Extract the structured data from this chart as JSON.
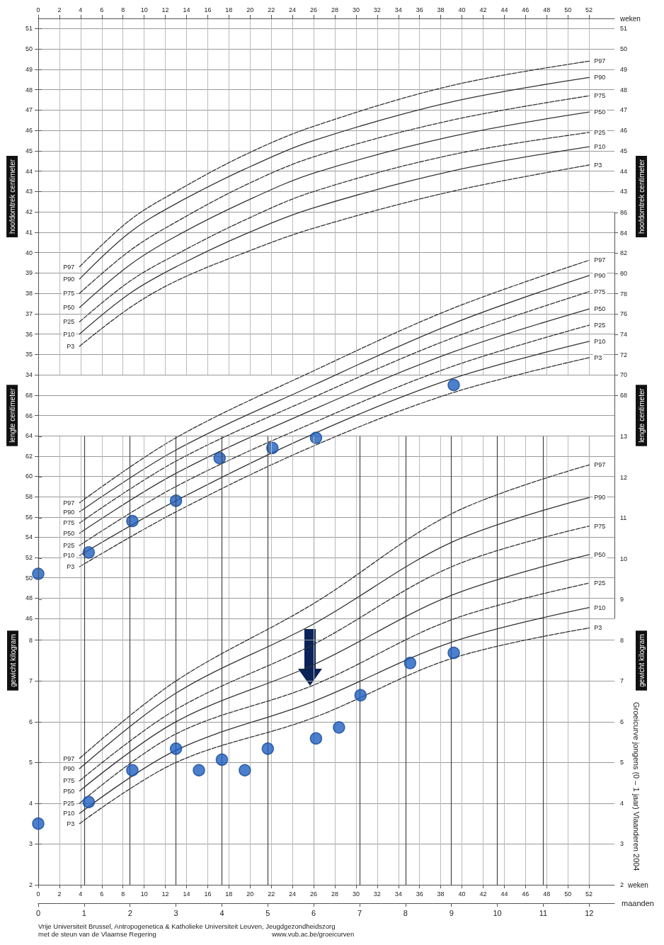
{
  "chart_data": [
    {
      "type": "line",
      "ylabel": "hoofdomtrek centimeter",
      "y2label": "hoofdomtrek centimeter",
      "x2label": "weken",
      "xlim": [
        0,
        12.55
      ],
      "x2lim": [
        0,
        54.4
      ],
      "x2ticks": [
        0,
        2,
        4,
        6,
        8,
        10,
        12,
        14,
        16,
        18,
        20,
        22,
        24,
        26,
        28,
        30,
        32,
        34,
        36,
        38,
        40,
        42,
        44,
        46,
        48,
        50,
        52
      ],
      "ylim": [
        34,
        51.5
      ],
      "yticks": [
        34,
        35,
        36,
        37,
        38,
        39,
        40,
        41,
        42,
        43,
        44,
        45,
        46,
        47,
        48,
        49,
        50,
        51
      ],
      "y2lim": [
        34,
        51.5
      ],
      "y2ticks": [
        43,
        44,
        45,
        46,
        47,
        48,
        49,
        50,
        51
      ],
      "tick_labels": "y",
      "grid": true,
      "legend": false,
      "x": [
        0.9,
        2,
        3,
        4.5,
        6,
        9,
        12
      ],
      "series": [
        {
          "name": "P97",
          "color": "#333333",
          "line_style": "dashed",
          "values": [
            39.3,
            41.6,
            43.0,
            44.8,
            46.2,
            48.2,
            49.4
          ]
        },
        {
          "name": "P90",
          "color": "#333333",
          "line_style": "solid",
          "values": [
            38.7,
            41.0,
            42.4,
            44.1,
            45.5,
            47.4,
            48.6
          ]
        },
        {
          "name": "P75",
          "color": "#333333",
          "line_style": "dashed",
          "values": [
            38.0,
            40.1,
            41.5,
            43.3,
            44.7,
            46.5,
            47.7
          ]
        },
        {
          "name": "P50",
          "color": "#333333",
          "line_style": "solid",
          "values": [
            37.3,
            39.4,
            40.8,
            42.5,
            43.9,
            45.7,
            46.9
          ]
        },
        {
          "name": "P25",
          "color": "#333333",
          "line_style": "dashed",
          "values": [
            36.6,
            38.6,
            39.9,
            41.6,
            43.0,
            44.8,
            45.9
          ]
        },
        {
          "name": "P10",
          "color": "#333333",
          "line_style": "solid",
          "values": [
            36.0,
            38.0,
            39.3,
            40.9,
            42.2,
            44.0,
            45.2
          ]
        },
        {
          "name": "P3",
          "color": "#333333",
          "line_style": "dashed",
          "values": [
            35.4,
            37.3,
            38.6,
            40.0,
            41.2,
            43.0,
            44.3
          ]
        }
      ]
    },
    {
      "type": "line",
      "ylabel": "lengte centimeter",
      "y2label": "lengte centimeter",
      "xlim": [
        0,
        12.55
      ],
      "ylim": [
        46,
        86
      ],
      "yticks": [
        46,
        48,
        50,
        52,
        54,
        56,
        58,
        60,
        62,
        64,
        66,
        68
      ],
      "y2lim": [
        46,
        86
      ],
      "y2ticks": [
        68,
        70,
        72,
        74,
        76,
        78,
        80,
        82,
        84,
        86
      ],
      "tick_labels": "y",
      "grid": true,
      "legend": false,
      "x": [
        0.9,
        3,
        6,
        9,
        12
      ],
      "series": [
        {
          "name": "P97",
          "color": "#333333",
          "line_style": "dashed",
          "values": [
            57.4,
            63.8,
            70.4,
            76.5,
            81.3
          ]
        },
        {
          "name": "P90",
          "color": "#333333",
          "line_style": "solid",
          "values": [
            56.5,
            62.6,
            69.0,
            75.0,
            79.8
          ]
        },
        {
          "name": "P75",
          "color": "#333333",
          "line_style": "dashed",
          "values": [
            55.4,
            61.5,
            67.8,
            73.6,
            78.2
          ]
        },
        {
          "name": "P50",
          "color": "#333333",
          "line_style": "solid",
          "values": [
            54.4,
            60.3,
            66.6,
            72.2,
            76.5
          ]
        },
        {
          "name": "P25",
          "color": "#333333",
          "line_style": "dashed",
          "values": [
            53.2,
            59.0,
            65.3,
            70.8,
            74.9
          ]
        },
        {
          "name": "P10",
          "color": "#333333",
          "line_style": "solid",
          "values": [
            52.2,
            57.6,
            64.2,
            69.6,
            73.3
          ]
        },
        {
          "name": "P3",
          "color": "#333333",
          "line_style": "dashed",
          "values": [
            51.1,
            56.5,
            63.0,
            68.2,
            71.7
          ]
        },
        {
          "type": "scatter",
          "marker": "circle",
          "color": "#1f5fbf",
          "x": [
            0,
            1.1,
            2.05,
            3,
            3.95,
            5.1,
            6.05,
            9.05
          ],
          "values": [
            50.4,
            52.5,
            55.6,
            57.6,
            61.8,
            62.8,
            63.8,
            69.0
          ]
        }
      ]
    },
    {
      "type": "line",
      "ylabel": "gewicht kilogram",
      "y2label": "gewicht kilogram",
      "xlabel": "maanden",
      "x2label": "weken",
      "xlim": [
        0,
        12.55
      ],
      "xticks": [
        0,
        1,
        2,
        3,
        4,
        5,
        6,
        7,
        8,
        9,
        10,
        11,
        12
      ],
      "x2lim": [
        0,
        54.4
      ],
      "x2ticks": [
        0,
        2,
        4,
        6,
        8,
        10,
        12,
        14,
        16,
        18,
        20,
        22,
        24,
        26,
        28,
        30,
        32,
        34,
        36,
        38,
        40,
        42,
        44,
        46,
        48,
        50,
        52
      ],
      "ylim": [
        2,
        13
      ],
      "yticks": [
        2,
        3,
        4,
        5,
        6,
        7,
        8
      ],
      "y2lim": [
        2,
        13
      ],
      "y2ticks": [
        2,
        3,
        4,
        5,
        6,
        7,
        8,
        9,
        10,
        11,
        12,
        13
      ],
      "grid": true,
      "legend": false,
      "annotations": [
        "Vrije Universiteit Brussel, Antropogenetica & Katholieke Universiteit Leuven, Jeugdgezondheidszorg",
        "met de steun van de Vlaamse Regering",
        "www.vub.ac.be/groeicurven",
        "Groeicurve jongens (0 – 1 jaar) Vlaanderen 2004"
      ],
      "x": [
        0.9,
        3,
        6,
        9,
        12
      ],
      "series": [
        {
          "name": "P97",
          "color": "#333333",
          "line_style": "dashed",
          "values": [
            5.1,
            7.0,
            8.9,
            11.1,
            12.3
          ]
        },
        {
          "name": "P90",
          "color": "#333333",
          "line_style": "solid",
          "values": [
            4.85,
            6.7,
            8.4,
            10.4,
            11.5
          ]
        },
        {
          "name": "P75",
          "color": "#333333",
          "line_style": "dashed",
          "values": [
            4.55,
            6.3,
            7.9,
            9.8,
            10.8
          ]
        },
        {
          "name": "P50",
          "color": "#333333",
          "line_style": "solid",
          "values": [
            4.3,
            6.0,
            7.4,
            9.1,
            10.1
          ]
        },
        {
          "name": "P25",
          "color": "#333333",
          "line_style": "dashed",
          "values": [
            4.0,
            5.7,
            6.9,
            8.5,
            9.4
          ]
        },
        {
          "name": "P10",
          "color": "#333333",
          "line_style": "solid",
          "values": [
            3.75,
            5.3,
            6.5,
            7.95,
            8.8
          ]
        },
        {
          "name": "P3",
          "color": "#333333",
          "line_style": "dashed",
          "values": [
            3.5,
            5.0,
            6.1,
            7.55,
            8.3
          ]
        },
        {
          "type": "scatter",
          "marker": "circle",
          "color": "#1f5fbf",
          "x": [
            0,
            1.1,
            2.05,
            3,
            3.5,
            4,
            4.5,
            5,
            6.05,
            6.55,
            7.02,
            8.1,
            9.05
          ],
          "values": [
            3.5,
            4.03,
            4.81,
            5.34,
            4.81,
            5.07,
            4.81,
            5.34,
            5.59,
            5.86,
            6.65,
            7.44,
            7.69
          ]
        }
      ]
    }
  ]
}
